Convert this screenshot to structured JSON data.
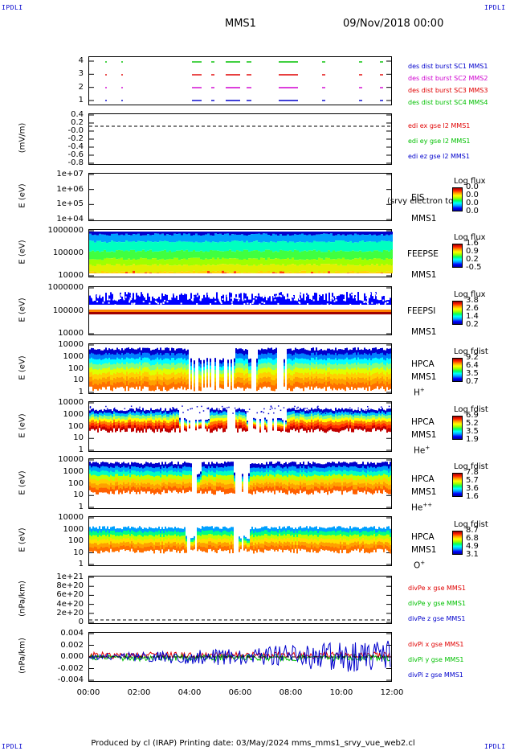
{
  "corners": {
    "tl": "IPDLI",
    "tr": "IPDLI",
    "bl": "IPDLI",
    "br": "IPDLI"
  },
  "header": {
    "spacecraft": "MMS1",
    "date": "09/Nov/2018 00:00"
  },
  "colors": {
    "red": "#e00000",
    "green": "#00c000",
    "blue": "#0000cc",
    "magenta": "#d000d0",
    "spectrum": [
      "#000080",
      "#0000ff",
      "#0080ff",
      "#00e0ff",
      "#00ff80",
      "#40ff00",
      "#c0ff00",
      "#ffff00",
      "#ffb000",
      "#ff6000",
      "#ff0000",
      "#a00000"
    ]
  },
  "panels": [
    {
      "id": "burst",
      "yticks": [
        "4",
        "3",
        "2",
        "1"
      ],
      "legend": [
        {
          "text": "des dist burst SC1 MMS1",
          "color": "#0000cc"
        },
        {
          "text": "des dist burst SC2 MMS2",
          "color": "#d000d0"
        },
        {
          "text": "des dist burst SC3 MMS3",
          "color": "#e00000"
        },
        {
          "text": "des dist burst SC4 MMS4",
          "color": "#00c000"
        }
      ]
    },
    {
      "id": "edi",
      "ylabel": "(mV/m)",
      "yticks": [
        "0.4",
        "0.2",
        "-0.0",
        "-0.2",
        "-0.4",
        "-0.6",
        "-0.8"
      ],
      "legend": [
        {
          "text": "edi ex gse l2 MMS1",
          "color": "#e00000"
        },
        {
          "text": "edi ey gse l2 MMS1",
          "color": "#00c000"
        },
        {
          "text": "edi ez gse l2 MMS1",
          "color": "#0000cc"
        }
      ]
    },
    {
      "id": "eis",
      "ylabel": "E (eV)",
      "yticks": [
        "1e+07",
        "1e+06",
        "1e+05",
        "1e+04"
      ],
      "inst": "EIS",
      "overlay": "(srvy electron to",
      "sc": "MMS1",
      "cb_title": "Log flux",
      "cb_labels": [
        "0.0",
        "0.0",
        "0.0",
        "0.0"
      ]
    },
    {
      "id": "feepse",
      "ylabel": "E (eV)",
      "yticks": [
        "1000000",
        "100000",
        "10000"
      ],
      "inst": "FEEPSE",
      "sc": "MMS1",
      "cb_title": "Log flux",
      "cb_labels": [
        "1.6",
        "0.9",
        "0.2",
        "-0.5"
      ]
    },
    {
      "id": "feepsi",
      "ylabel": "E (eV)",
      "yticks": [
        "1000000",
        "100000",
        "10000"
      ],
      "inst": "FEEPSI",
      "sc": "MMS1",
      "cb_title": "Log flux",
      "cb_labels": [
        "3.8",
        "2.6",
        "1.4",
        "0.2"
      ]
    },
    {
      "id": "hpca_h",
      "ylabel": "E (eV)",
      "yticks": [
        "10000",
        "1000",
        "100",
        "10",
        "1"
      ],
      "inst": "HPCA",
      "sc": "MMS1",
      "species": "H",
      "species_sup": "+",
      "cb_title": "Log fdist",
      "cb_labels": [
        "9.2",
        "6.4",
        "3.5",
        "0.7"
      ]
    },
    {
      "id": "hpca_he",
      "ylabel": "E (eV)",
      "yticks": [
        "10000",
        "1000",
        "100",
        "10",
        "1"
      ],
      "inst": "HPCA",
      "sc": "MMS1",
      "species": "He",
      "species_sup": "+",
      "cb_title": "Log fdist",
      "cb_labels": [
        "6.9",
        "5.2",
        "3.5",
        "1.9"
      ]
    },
    {
      "id": "hpca_hepp",
      "ylabel": "E (eV)",
      "yticks": [
        "10000",
        "1000",
        "100",
        "10",
        "1"
      ],
      "inst": "HPCA",
      "sc": "MMS1",
      "species": "He",
      "species_sup": "++",
      "cb_title": "Log fdist",
      "cb_labels": [
        "7.8",
        "5.7",
        "3.6",
        "1.6"
      ]
    },
    {
      "id": "hpca_o",
      "ylabel": "E (eV)",
      "yticks": [
        "10000",
        "1000",
        "100",
        "10",
        "1"
      ],
      "inst": "HPCA",
      "sc": "MMS1",
      "species": "O",
      "species_sup": "+",
      "cb_title": "Log fdist",
      "cb_labels": [
        "8.7",
        "6.8",
        "4.9",
        "3.1"
      ]
    },
    {
      "id": "divpe",
      "ylabel": "(nPa/km)",
      "yticks": [
        "1e+21",
        "8e+20",
        "6e+20",
        "4e+20",
        "2e+20",
        "0"
      ],
      "legend": [
        {
          "text": "divPe x gse MMS1",
          "color": "#e00000"
        },
        {
          "text": "divPe y gse MMS1",
          "color": "#00c000"
        },
        {
          "text": "divPe z gse MMS1",
          "color": "#0000cc"
        }
      ]
    },
    {
      "id": "divpi",
      "ylabel": "(nPa/km)",
      "yticks": [
        "0.004",
        "0.002",
        "0.000",
        "-0.002",
        "-0.004"
      ],
      "legend": [
        {
          "text": "divPi x gse MMS1",
          "color": "#e00000"
        },
        {
          "text": "divPi y gse MMS1",
          "color": "#00c000"
        },
        {
          "text": "divPi z gse MMS1",
          "color": "#0000cc"
        }
      ]
    }
  ],
  "xaxis": {
    "ticks": [
      "00:00",
      "02:00",
      "04:00",
      "06:00",
      "08:00",
      "10:00",
      "12:00"
    ]
  },
  "footer": "Produced by cl (IRAP)   Printing date: 03/May/2024   mms_mms1_srvy_vue_web2.cl",
  "chart_data": {
    "type": "heatmap",
    "x_range": [
      "00:00",
      "12:00"
    ],
    "x_unit": "UT hours",
    "colorbars": {
      "EIS": [
        0.0,
        0.0,
        0.0,
        0.0
      ],
      "FEEPSE": [
        1.6,
        0.9,
        0.2,
        -0.5
      ],
      "FEEPSI": [
        3.8,
        2.6,
        1.4,
        0.2
      ],
      "HPCA H+": [
        9.2,
        6.4,
        3.5,
        0.7
      ],
      "HPCA He+": [
        6.9,
        5.2,
        3.5,
        1.9
      ],
      "HPCA He++": [
        7.8,
        5.7,
        3.6,
        1.6
      ],
      "HPCA O+": [
        8.7,
        6.8,
        4.9,
        3.1
      ]
    },
    "ylims": {
      "burst": [
        0.5,
        4.5
      ],
      "edi": [
        -0.9,
        0.45
      ],
      "eis": [
        10000.0,
        10000000.0
      ],
      "feepse": [
        10000.0,
        1000000.0
      ],
      "feepsi": [
        10000.0,
        1000000.0
      ],
      "hpca": [
        1,
        10000.0
      ],
      "divpe": [
        0,
        1e+21
      ],
      "divpi": [
        -0.004,
        0.004
      ]
    }
  }
}
